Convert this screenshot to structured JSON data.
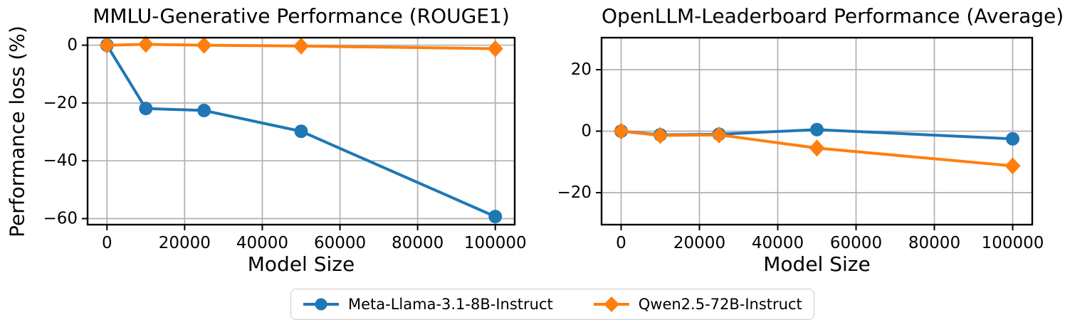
{
  "figure": {
    "ylabel": "Performance loss (%)",
    "legend": {
      "entries": [
        {
          "label": "Meta-Llama-3.1-8B-Instruct",
          "color": "#1f77b4",
          "marker": "circle"
        },
        {
          "label": "Qwen2.5-72B-Instruct",
          "color": "#ff7f0e",
          "marker": "diamond"
        }
      ]
    },
    "colors": {
      "blue": "#1f77b4",
      "orange": "#ff7f0e",
      "grid": "#b0b0b0",
      "spine": "#000000",
      "legend_border": "#cccccc",
      "background": "#ffffff"
    }
  },
  "chart_data": [
    {
      "type": "line",
      "title": "MMLU-Generative Performance (ROUGE1)",
      "xlabel": "Model Size",
      "ylabel": "Performance loss (%)",
      "x": [
        0,
        10000,
        25000,
        50000,
        100000
      ],
      "series": [
        {
          "name": "Meta-Llama-3.1-8B-Instruct",
          "color": "#1f77b4",
          "marker": "circle",
          "values": [
            0.0,
            -21.9,
            -22.6,
            -29.8,
            -59.3
          ]
        },
        {
          "name": "Qwen2.5-72B-Instruct",
          "color": "#ff7f0e",
          "marker": "diamond",
          "values": [
            0.0,
            0.3,
            0.0,
            -0.3,
            -1.2
          ]
        }
      ],
      "xticks": [
        0,
        20000,
        40000,
        60000,
        80000,
        100000
      ],
      "yticks": [
        0,
        -20,
        -40,
        -60
      ],
      "xlim": [
        -5000,
        105000
      ],
      "ylim": [
        -62.1,
        2.6
      ],
      "grid": true,
      "legend_position": "figure-bottom-center"
    },
    {
      "type": "line",
      "title": "OpenLLM-Leaderboard Performance (Average)",
      "xlabel": "Model Size",
      "ylabel": "",
      "x": [
        0,
        10000,
        25000,
        50000,
        100000
      ],
      "series": [
        {
          "name": "Meta-Llama-3.1-8B-Instruct",
          "color": "#1f77b4",
          "marker": "circle",
          "values": [
            0.0,
            -1.2,
            -1.0,
            0.5,
            -2.5
          ]
        },
        {
          "name": "Qwen2.5-72B-Instruct",
          "color": "#ff7f0e",
          "marker": "diamond",
          "values": [
            0.0,
            -1.4,
            -1.2,
            -5.5,
            -11.3
          ]
        }
      ],
      "xticks": [
        0,
        20000,
        40000,
        60000,
        80000,
        100000
      ],
      "yticks": [
        20,
        0,
        -20
      ],
      "xlim": [
        -5000,
        105000
      ],
      "ylim": [
        -30.4,
        30.4
      ],
      "grid": true,
      "legend_position": "figure-bottom-center"
    }
  ]
}
